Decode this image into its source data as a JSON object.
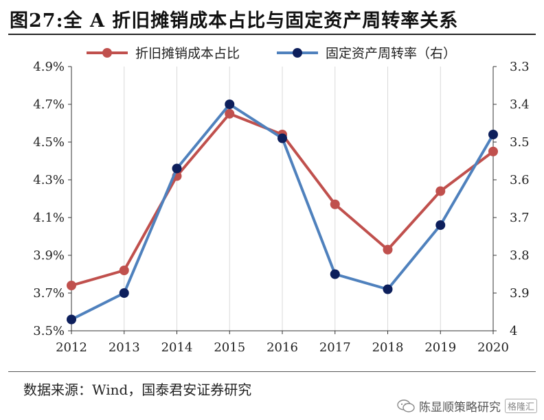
{
  "title": "图27:全 A 折旧摊销成本占比与固定资产周转率关系",
  "source": "数据来源：Wind，国泰君安证券研究",
  "watermark": {
    "text": "陈显顺策略研究",
    "logo": "格隆汇",
    "icon": "wechat-icon"
  },
  "chart_data": {
    "type": "line",
    "x": [
      "2012",
      "2013",
      "2014",
      "2015",
      "2016",
      "2017",
      "2018",
      "2019",
      "2020"
    ],
    "left_axis": {
      "ylim": [
        3.5,
        4.9
      ],
      "ticks": [
        3.5,
        3.7,
        3.9,
        4.1,
        4.3,
        4.5,
        4.7,
        4.9
      ],
      "tick_labels": [
        "3.5%",
        "3.7%",
        "3.9%",
        "4.1%",
        "4.3%",
        "4.5%",
        "4.7%",
        "4.9%"
      ]
    },
    "right_axis": {
      "ylim": [
        3.3,
        4.0
      ],
      "inverted": true,
      "ticks": [
        3.3,
        3.4,
        3.5,
        3.6,
        3.7,
        3.8,
        3.9,
        4.0
      ],
      "tick_labels": [
        "3.3",
        "3.4",
        "3.5",
        "3.6",
        "3.7",
        "3.8",
        "3.9",
        "4"
      ]
    },
    "series": [
      {
        "name": "折旧摊销成本占比",
        "axis": "left",
        "color": "#c0504d",
        "values": [
          3.74,
          3.82,
          4.32,
          4.65,
          4.54,
          4.17,
          3.93,
          4.24,
          4.45
        ]
      },
      {
        "name": "固定资产周转率（右）",
        "axis": "right",
        "color": "#4f81bd",
        "marker_color": "#0d1f5c",
        "values": [
          3.97,
          3.9,
          3.57,
          3.4,
          3.49,
          3.85,
          3.89,
          3.72,
          3.48
        ]
      }
    ],
    "legend_position": "top",
    "grid": "vertical"
  }
}
